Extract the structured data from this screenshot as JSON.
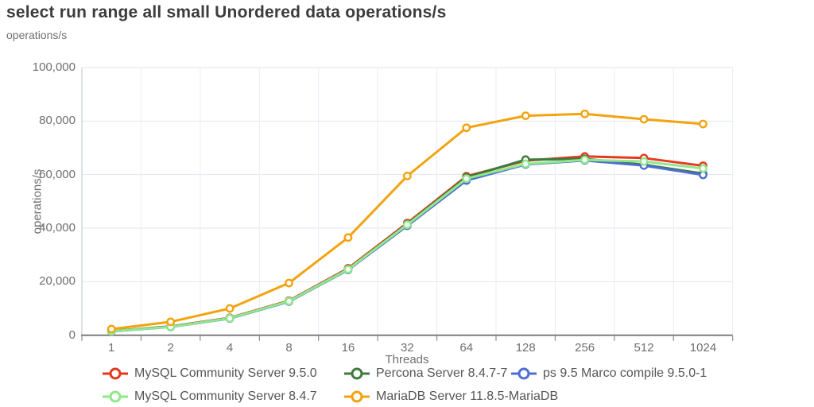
{
  "chart_data": {
    "type": "line",
    "title": "select run range all small Unordered data operations/s",
    "xlabel": "Threads",
    "ylabel": "operations/s",
    "x_categories": [
      "1",
      "2",
      "4",
      "8",
      "16",
      "32",
      "64",
      "128",
      "256",
      "512",
      "1024"
    ],
    "ylim": [
      0,
      100000
    ],
    "y_tick_values": [
      0,
      20000,
      40000,
      60000,
      80000,
      100000
    ],
    "y_tick_labels": [
      "0",
      "20,000",
      "40,000",
      "60,000",
      "80,000",
      "100,000"
    ],
    "grid": true,
    "legend_position": "bottom",
    "marker_style": "open-circle",
    "colors": {
      "grid_horizontal": "#e2e6ed",
      "grid_vertical": "#e8edf6",
      "axis_x": "#7d7d7d",
      "axis_y": "#c9cdd4",
      "tick_mark": "#8a8a8a",
      "title_text": "#3c3c3c",
      "tick_text": "#6f6f6f",
      "legend_text": "#565656"
    },
    "series": [
      {
        "name": "MySQL Community Server 9.5.0",
        "color": "#e5391e",
        "values": [
          1600,
          3300,
          6500,
          12900,
          25000,
          41900,
          59400,
          65200,
          66800,
          66200,
          63300
        ]
      },
      {
        "name": "Percona Server 8.4.7-7",
        "color": "#3e7b3c",
        "values": [
          1550,
          3200,
          6400,
          12750,
          24700,
          41500,
          59000,
          65600,
          65900,
          63700,
          60400
        ]
      },
      {
        "name": "ps 9.5 Marco compile 9.5.0-1",
        "color": "#4f6ed2",
        "values": [
          1450,
          3100,
          6250,
          12550,
          24400,
          40900,
          57800,
          63800,
          65300,
          63400,
          59900
        ]
      },
      {
        "name": "MySQL Community Server 8.4.7",
        "color": "#8fe88c",
        "values": [
          1500,
          3150,
          6350,
          12700,
          24600,
          41300,
          58500,
          64000,
          65500,
          64900,
          62300
        ]
      },
      {
        "name": "MariaDB Server 11.8.5-MariaDB",
        "color": "#f2a30f",
        "values": [
          2300,
          5000,
          10000,
          19500,
          36500,
          59500,
          77500,
          82000,
          82700,
          80700,
          78900
        ]
      }
    ]
  }
}
